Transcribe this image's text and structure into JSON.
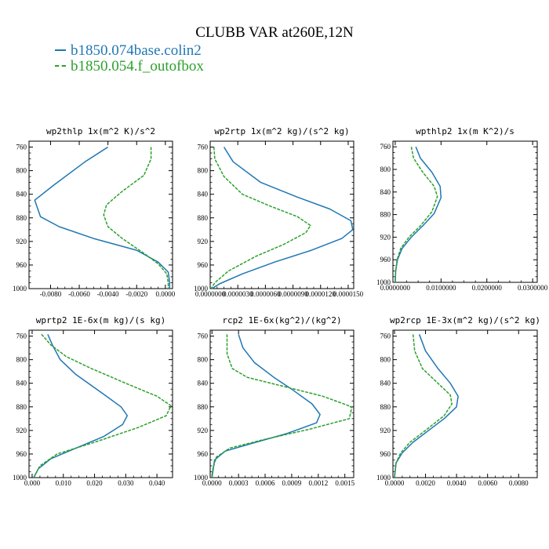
{
  "figure": {
    "title": "CLUBB VAR at260E,12N",
    "legend": [
      {
        "name": "b1850.074base.colin2",
        "color": "#1f77b4",
        "style": "solid"
      },
      {
        "name": "b1850.054.f_outofbox",
        "color": "#2ca02c",
        "style": "dashed"
      }
    ]
  },
  "chart_data": [
    {
      "type": "line",
      "title": "wp2thlp  1x(m^2 K)/s^2",
      "ylim": [
        1000,
        750
      ],
      "xlim": [
        -0.0095,
        0.0005
      ],
      "x_ticks": [
        -0.008,
        -0.006,
        -0.004,
        -0.002,
        0.0
      ],
      "x_tick_labels": [
        "-0.0080",
        "-0.0060",
        "-0.0040",
        "-0.0020",
        "0.0000"
      ],
      "y_ticks": [
        760,
        800,
        840,
        880,
        920,
        960,
        1000
      ],
      "y_tick_labels": [
        "760",
        "800",
        "840",
        "880",
        "920",
        "960",
        "1000"
      ],
      "series": [
        {
          "color": "#1f77b4",
          "style": "solid",
          "points": [
            [
              -0.004,
              760
            ],
            [
              -0.0056,
              785
            ],
            [
              -0.0078,
              825
            ],
            [
              -0.0091,
              850
            ],
            [
              -0.0087,
              878
            ],
            [
              -0.0074,
              895
            ],
            [
              -0.005,
              915
            ],
            [
              -0.002,
              935
            ],
            [
              -0.0005,
              955
            ],
            [
              0.0002,
              972
            ],
            [
              0.0003,
              990
            ],
            [
              0.0003,
              1000
            ]
          ]
        },
        {
          "color": "#2ca02c",
          "style": "dashed",
          "points": [
            [
              -0.001,
              760
            ],
            [
              -0.001,
              780
            ],
            [
              -0.0015,
              808
            ],
            [
              -0.003,
              835
            ],
            [
              -0.0041,
              858
            ],
            [
              -0.0043,
              875
            ],
            [
              -0.004,
              895
            ],
            [
              -0.003,
              915
            ],
            [
              -0.0015,
              940
            ],
            [
              -0.0005,
              958
            ],
            [
              0.0001,
              975
            ],
            [
              0.0002,
              990
            ],
            [
              0.0002,
              1000
            ]
          ]
        }
      ]
    },
    {
      "type": "line",
      "title": "wp2rtp  1x(m^2 kg)/(s^2 kg)",
      "ylim": [
        1000,
        750
      ],
      "xlim": [
        0.0,
        1.56e-05
      ],
      "x_ticks": [
        0.0,
        3e-06,
        6e-06,
        9e-06,
        1.2e-05,
        1.5e-05
      ],
      "x_tick_labels": [
        "0.0000000",
        "0.0000030",
        "0.0000060",
        "0.0000090",
        "0.0000120",
        "0.0000150"
      ],
      "y_ticks": [
        760,
        800,
        840,
        880,
        920,
        960,
        1000
      ],
      "y_tick_labels": [
        "760",
        "800",
        "840",
        "880",
        "920",
        "960",
        "1000"
      ],
      "series": [
        {
          "color": "#1f77b4",
          "style": "solid",
          "points": [
            [
              1.5e-06,
              760
            ],
            [
              2.5e-06,
              785
            ],
            [
              5.5e-06,
              820
            ],
            [
              9.5e-06,
              845
            ],
            [
              1.3e-05,
              865
            ],
            [
              1.53e-05,
              885
            ],
            [
              1.55e-05,
              900
            ],
            [
              1.43e-05,
              915
            ],
            [
              1.1e-05,
              935
            ],
            [
              7e-06,
              955
            ],
            [
              3.5e-06,
              975
            ],
            [
              1e-06,
              992
            ],
            [
              2e-07,
              1000
            ]
          ]
        },
        {
          "color": "#2ca02c",
          "style": "dashed",
          "points": [
            [
              4e-07,
              760
            ],
            [
              5e-07,
              780
            ],
            [
              1.5e-06,
              810
            ],
            [
              3.5e-06,
              840
            ],
            [
              6.5e-06,
              860
            ],
            [
              9.5e-06,
              878
            ],
            [
              1.09e-05,
              893
            ],
            [
              1.04e-05,
              905
            ],
            [
              8e-06,
              925
            ],
            [
              5e-06,
              945
            ],
            [
              2e-06,
              970
            ],
            [
              5e-07,
              990
            ],
            [
              1e-07,
              1000
            ]
          ]
        }
      ]
    },
    {
      "type": "line",
      "title": "wpthlp2  1x(m K^2)/s",
      "ylim": [
        1000,
        750
      ],
      "xlim": [
        -0.0005,
        0.031
      ],
      "x_ticks": [
        0.0,
        0.01,
        0.02,
        0.03
      ],
      "x_tick_labels": [
        "0.0000000",
        "0.0100000",
        "0.0200000",
        "0.0300000"
      ],
      "y_ticks": [
        760,
        800,
        840,
        880,
        920,
        960,
        1000
      ],
      "y_tick_labels": [
        "760",
        "800",
        "840",
        "880",
        "920",
        "960",
        "1000"
      ],
      "series": [
        {
          "color": "#1f77b4",
          "style": "solid",
          "points": [
            [
              0.0045,
              760
            ],
            [
              0.0055,
              780
            ],
            [
              0.008,
              805
            ],
            [
              0.0098,
              830
            ],
            [
              0.01,
              850
            ],
            [
              0.0085,
              878
            ],
            [
              0.006,
              900
            ],
            [
              0.0035,
              920
            ],
            [
              0.0015,
              940
            ],
            [
              0.0005,
              960
            ],
            [
              0.0001,
              980
            ],
            [
              0.0,
              1000
            ]
          ]
        },
        {
          "color": "#2ca02c",
          "style": "dashed",
          "points": [
            [
              0.0035,
              760
            ],
            [
              0.004,
              780
            ],
            [
              0.006,
              805
            ],
            [
              0.0085,
              830
            ],
            [
              0.0092,
              848
            ],
            [
              0.008,
              875
            ],
            [
              0.0055,
              900
            ],
            [
              0.003,
              920
            ],
            [
              0.0012,
              940
            ],
            [
              0.0004,
              960
            ],
            [
              0.0001,
              980
            ],
            [
              0.0,
              1000
            ]
          ]
        }
      ]
    },
    {
      "type": "line",
      "title": "wprtp2  1E-6x(m kg)/(s kg)",
      "ylim": [
        1000,
        750
      ],
      "xlim": [
        -0.001,
        0.045
      ],
      "x_ticks": [
        0.0,
        0.01,
        0.02,
        0.03,
        0.04
      ],
      "x_tick_labels": [
        "0.000",
        "0.010",
        "0.020",
        "0.030",
        "0.040"
      ],
      "y_ticks": [
        760,
        800,
        840,
        880,
        920,
        960,
        1000
      ],
      "y_tick_labels": [
        "760",
        "800",
        "840",
        "880",
        "920",
        "960",
        "1000"
      ],
      "series": [
        {
          "color": "#1f77b4",
          "style": "solid",
          "points": [
            [
              0.005,
              757
            ],
            [
              0.0065,
              775
            ],
            [
              0.009,
              800
            ],
            [
              0.014,
              825
            ],
            [
              0.022,
              855
            ],
            [
              0.0285,
              880
            ],
            [
              0.0305,
              895
            ],
            [
              0.029,
              910
            ],
            [
              0.023,
              930
            ],
            [
              0.014,
              950
            ],
            [
              0.006,
              968
            ],
            [
              0.002,
              985
            ],
            [
              0.0005,
              1000
            ]
          ]
        },
        {
          "color": "#2ca02c",
          "style": "dashed",
          "points": [
            [
              0.003,
              757
            ],
            [
              0.006,
              775
            ],
            [
              0.011,
              795
            ],
            [
              0.019,
              815
            ],
            [
              0.03,
              840
            ],
            [
              0.04,
              862
            ],
            [
              0.0445,
              878
            ],
            [
              0.043,
              895
            ],
            [
              0.034,
              915
            ],
            [
              0.02,
              940
            ],
            [
              0.008,
              960
            ],
            [
              0.0025,
              980
            ],
            [
              0.0005,
              1000
            ]
          ]
        }
      ]
    },
    {
      "type": "line",
      "title": "rcp2  1E-6x(kg^2)/(kg^2)",
      "ylim": [
        1000,
        750
      ],
      "xlim": [
        -2e-05,
        0.0016
      ],
      "x_ticks": [
        0.0,
        0.0003,
        0.0006,
        0.0009,
        0.0012,
        0.0015
      ],
      "x_tick_labels": [
        "0.0000",
        "0.0003",
        "0.0006",
        "0.0009",
        "0.0012",
        "0.0015"
      ],
      "y_ticks": [
        760,
        800,
        840,
        880,
        920,
        960,
        1000
      ],
      "y_tick_labels": [
        "760",
        "800",
        "840",
        "880",
        "920",
        "960",
        "1000"
      ],
      "series": [
        {
          "color": "#1f77b4",
          "style": "solid",
          "points": [
            [
              0.0003,
              757
            ],
            [
              0.00035,
              780
            ],
            [
              0.00048,
              805
            ],
            [
              0.0007,
              830
            ],
            [
              0.0009,
              850
            ],
            [
              0.00113,
              875
            ],
            [
              0.00122,
              893
            ],
            [
              0.00118,
              907
            ],
            [
              0.00085,
              925
            ],
            [
              0.00045,
              942
            ],
            [
              0.00015,
              955
            ],
            [
              3e-05,
              970
            ],
            [
              1e-05,
              990
            ],
            [
              0.0,
              1000
            ]
          ]
        },
        {
          "color": "#2ca02c",
          "style": "dashed",
          "points": [
            [
              0.00017,
              757
            ],
            [
              0.00017,
              790
            ],
            [
              0.00023,
              815
            ],
            [
              0.0004,
              830
            ],
            [
              0.0008,
              845
            ],
            [
              0.00125,
              862
            ],
            [
              0.00158,
              880
            ],
            [
              0.00155,
              900
            ],
            [
              0.0011,
              918
            ],
            [
              0.0006,
              935
            ],
            [
              0.0002,
              950
            ],
            [
              5e-05,
              965
            ],
            [
              1e-05,
              985
            ],
            [
              0.0,
              1000
            ]
          ]
        }
      ]
    },
    {
      "type": "line",
      "title": "wp2rcp  1E-3x(m^2 kg)/(s^2 kg)",
      "ylim": [
        1000,
        750
      ],
      "xlim": [
        -0.0001,
        0.0092
      ],
      "x_ticks": [
        0.0,
        0.002,
        0.004,
        0.006,
        0.008
      ],
      "x_tick_labels": [
        "0.0000",
        "0.0020",
        "0.0040",
        "0.0060",
        "0.0080"
      ],
      "y_ticks": [
        760,
        800,
        840,
        880,
        920,
        960,
        1000
      ],
      "y_tick_labels": [
        "760",
        "800",
        "840",
        "880",
        "920",
        "960",
        "1000"
      ],
      "series": [
        {
          "color": "#1f77b4",
          "style": "solid",
          "points": [
            [
              0.0016,
              757
            ],
            [
              0.002,
              785
            ],
            [
              0.0028,
              815
            ],
            [
              0.0036,
              840
            ],
            [
              0.0041,
              862
            ],
            [
              0.004,
              880
            ],
            [
              0.0032,
              900
            ],
            [
              0.0022,
              920
            ],
            [
              0.0012,
              940
            ],
            [
              0.0005,
              958
            ],
            [
              0.0001,
              975
            ],
            [
              0.0,
              1000
            ]
          ]
        },
        {
          "color": "#2ca02c",
          "style": "dashed",
          "points": [
            [
              0.0012,
              757
            ],
            [
              0.0013,
              785
            ],
            [
              0.0018,
              815
            ],
            [
              0.0028,
              840
            ],
            [
              0.0036,
              860
            ],
            [
              0.0037,
              875
            ],
            [
              0.0032,
              895
            ],
            [
              0.002,
              920
            ],
            [
              0.001,
              940
            ],
            [
              0.0004,
              958
            ],
            [
              0.0001,
              975
            ],
            [
              0.0,
              1000
            ]
          ]
        }
      ]
    }
  ]
}
